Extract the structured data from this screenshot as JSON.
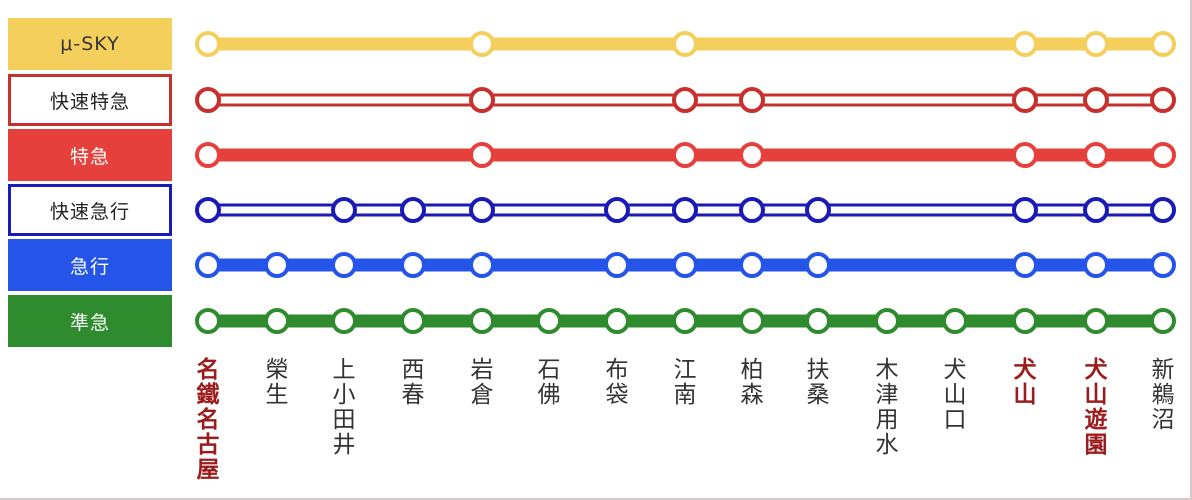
{
  "services": [
    {
      "label": "μ-SKY",
      "style": "solid",
      "color": "#f5cf5c",
      "box_bg": "#f5cf5c",
      "box_text": "#333333",
      "box_border": "#f5cf5c",
      "stops": [
        0,
        4,
        7,
        12,
        13,
        14
      ]
    },
    {
      "label": "快速特急",
      "style": "double",
      "color": "#c8302e",
      "box_bg": "#ffffff",
      "box_text": "#222222",
      "box_border": "#c8302e",
      "stops": [
        0,
        4,
        7,
        8,
        12,
        13,
        14
      ]
    },
    {
      "label": "特急",
      "style": "solid",
      "color": "#e5403c",
      "box_bg": "#e5403c",
      "box_text": "#ffffff",
      "box_border": "#e5403c",
      "stops": [
        0,
        4,
        7,
        8,
        12,
        13,
        14
      ]
    },
    {
      "label": "快速急行",
      "style": "double",
      "color": "#1a1ab5",
      "box_bg": "#ffffff",
      "box_text": "#222222",
      "box_border": "#1a1ab5",
      "stops": [
        0,
        2,
        3,
        4,
        6,
        7,
        8,
        9,
        12,
        13,
        14
      ]
    },
    {
      "label": "急行",
      "style": "solid",
      "color": "#2554e8",
      "box_bg": "#2554e8",
      "box_text": "#ffffff",
      "box_border": "#2554e8",
      "stops": [
        0,
        1,
        2,
        3,
        4,
        6,
        7,
        8,
        9,
        12,
        13,
        14
      ]
    },
    {
      "label": "準急",
      "style": "solid",
      "color": "#2e8b2e",
      "box_bg": "#2e8b2e",
      "box_text": "#ffffff",
      "box_border": "#2e8b2e",
      "stops": [
        0,
        1,
        2,
        3,
        4,
        5,
        6,
        7,
        8,
        9,
        10,
        11,
        12,
        13,
        14
      ]
    }
  ],
  "stations": [
    {
      "name": "名鐵名古屋",
      "major": true
    },
    {
      "name": "榮生",
      "major": false
    },
    {
      "name": "上小田井",
      "major": false
    },
    {
      "name": "西春",
      "major": false
    },
    {
      "name": "岩倉",
      "major": false
    },
    {
      "name": "石佛",
      "major": false
    },
    {
      "name": "布袋",
      "major": false
    },
    {
      "name": "江南",
      "major": false
    },
    {
      "name": "柏森",
      "major": false
    },
    {
      "name": "扶桑",
      "major": false
    },
    {
      "name": "木津用水",
      "major": false
    },
    {
      "name": "犬山口",
      "major": false
    },
    {
      "name": "犬山",
      "major": true
    },
    {
      "name": "犬山遊園",
      "major": true
    },
    {
      "name": "新鵜沼",
      "major": false
    }
  ]
}
